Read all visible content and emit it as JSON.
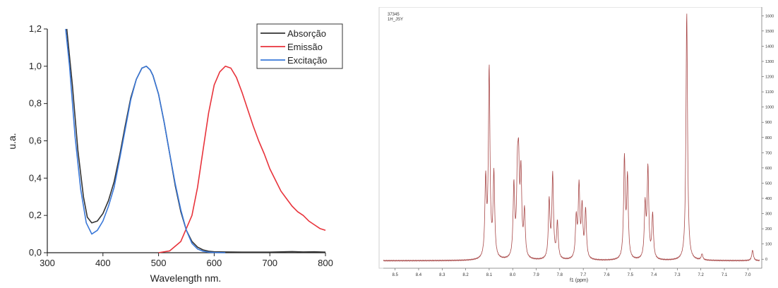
{
  "chart_data": [
    {
      "type": "line",
      "xlabel": "Wavelength nm.",
      "ylabel": "u.a.",
      "xlim": [
        300,
        800
      ],
      "ylim": [
        0,
        1.2
      ],
      "xticks": [
        "300",
        "400",
        "500",
        "600",
        "700",
        "800"
      ],
      "yticks": [
        "0,0",
        "0,2",
        "0,4",
        "0,6",
        "0,8",
        "1,0",
        "1,2"
      ],
      "legend": "top-right",
      "series": [
        {
          "name": "Absorção",
          "color": "#333333",
          "x": [
            335,
            345,
            355,
            365,
            372,
            380,
            390,
            400,
            410,
            420,
            430,
            440,
            450,
            460,
            470,
            478,
            485,
            490,
            500,
            510,
            520,
            530,
            540,
            550,
            560,
            570,
            580,
            590,
            600,
            620,
            650,
            700,
            740,
            760,
            780,
            800
          ],
          "y": [
            1.2,
            0.9,
            0.55,
            0.3,
            0.19,
            0.16,
            0.17,
            0.21,
            0.28,
            0.38,
            0.52,
            0.68,
            0.83,
            0.93,
            0.99,
            1.0,
            0.98,
            0.95,
            0.85,
            0.7,
            0.53,
            0.36,
            0.22,
            0.12,
            0.06,
            0.03,
            0.015,
            0.008,
            0.005,
            0.004,
            0.003,
            0.003,
            0.006,
            0.004,
            0.005,
            0.003
          ]
        },
        {
          "name": "Emissão",
          "color": "#e8333b",
          "x": [
            500,
            520,
            540,
            560,
            570,
            580,
            590,
            600,
            610,
            620,
            630,
            640,
            650,
            660,
            670,
            680,
            690,
            700,
            710,
            720,
            730,
            740,
            750,
            760,
            770,
            780,
            790,
            800
          ],
          "y": [
            0.0,
            0.01,
            0.06,
            0.2,
            0.35,
            0.55,
            0.75,
            0.9,
            0.97,
            1.0,
            0.99,
            0.94,
            0.86,
            0.77,
            0.68,
            0.6,
            0.53,
            0.45,
            0.39,
            0.33,
            0.29,
            0.25,
            0.22,
            0.2,
            0.17,
            0.15,
            0.13,
            0.12
          ]
        },
        {
          "name": "Excitação",
          "color": "#3a78d8",
          "x": [
            333,
            340,
            350,
            360,
            370,
            380,
            390,
            400,
            410,
            420,
            430,
            440,
            450,
            460,
            470,
            478,
            485,
            490,
            500,
            510,
            520,
            530,
            540,
            550,
            560,
            570,
            580,
            590,
            600,
            620
          ],
          "y": [
            1.2,
            1.0,
            0.62,
            0.34,
            0.16,
            0.1,
            0.12,
            0.17,
            0.25,
            0.35,
            0.5,
            0.66,
            0.82,
            0.93,
            0.99,
            1.0,
            0.98,
            0.95,
            0.85,
            0.7,
            0.53,
            0.37,
            0.23,
            0.12,
            0.05,
            0.02,
            0.008,
            0.003,
            0.001,
            0.0
          ]
        }
      ]
    },
    {
      "type": "line",
      "title_lines": [
        "37345",
        "1H_JSY"
      ],
      "xlabel": "f1 (ppm)",
      "xlim": [
        8.55,
        6.95
      ],
      "ylim": [
        -50,
        1620
      ],
      "x_reversed": true,
      "xticks": [
        "8.5",
        "8.4",
        "8.3",
        "8.2",
        "8.1",
        "8.0",
        "7.9",
        "7.8",
        "7.7",
        "7.6",
        "7.5",
        "7.4",
        "7.3",
        "7.2",
        "7.1",
        "7.0"
      ],
      "yticks": [
        "0",
        "100",
        "200",
        "300",
        "400",
        "500",
        "600",
        "700",
        "800",
        "900",
        "1000",
        "1100",
        "1200",
        "1300",
        "1400",
        "1500",
        "1600"
      ],
      "baseline": -10,
      "line_width": 0.008,
      "series": [
        {
          "name": "",
          "color": "#a84848",
          "peaks_ppm": [
            8.115,
            8.1,
            8.08,
            7.995,
            7.98,
            7.975,
            7.965,
            7.95,
            7.845,
            7.83,
            7.81,
            7.73,
            7.718,
            7.705,
            7.69,
            7.525,
            7.512,
            7.437,
            7.425,
            7.405,
            7.26,
            7.195,
            6.98
          ],
          "peaks_height": [
            490,
            1230,
            540,
            460,
            450,
            510,
            520,
            290,
            370,
            540,
            230,
            250,
            460,
            320,
            310,
            650,
            520,
            340,
            580,
            280,
            1620,
            30,
            60
          ]
        }
      ]
    }
  ]
}
